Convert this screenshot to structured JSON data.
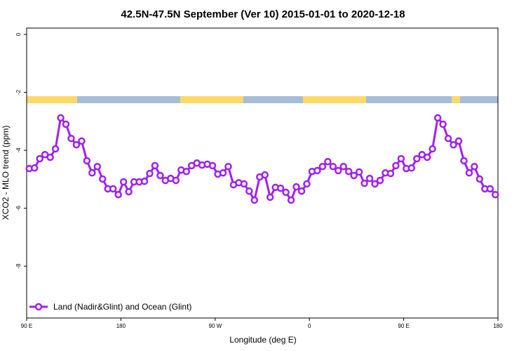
{
  "chart_data": {
    "type": "line",
    "title": "42.5N-47.5N September (Ver 10)   2015-01-01 to 2020-12-18",
    "x_label": "Longitude (deg E)",
    "y_label": "XCO2 - MLO trend (ppm)",
    "xlim": [
      90,
      540
    ],
    "ylim": [
      -9.79,
      0.22
    ],
    "xticks": [
      {
        "value": 90,
        "label": "90 E"
      },
      {
        "value": 180,
        "label": "180"
      },
      {
        "value": 270,
        "label": "90 W"
      },
      {
        "value": 360,
        "label": "0"
      },
      {
        "value": 450,
        "label": "90 E"
      },
      {
        "value": 540,
        "label": "180"
      }
    ],
    "yticks": [
      0,
      -2,
      -4,
      -6,
      -8
    ],
    "legend": "bottom-left",
    "x": [
      92.5,
      97.5,
      102.5,
      107.5,
      112.5,
      117.5,
      122.5,
      127.5,
      132.5,
      137.5,
      142.5,
      147.5,
      152.5,
      157.5,
      162.5,
      167.5,
      172.5,
      177.5,
      182.5,
      187.5,
      192.5,
      197.5,
      202.5,
      207.5,
      212.5,
      217.5,
      222.5,
      227.5,
      232.5,
      237.5,
      242.5,
      247.5,
      252.5,
      257.5,
      262.5,
      267.5,
      272.5,
      277.5,
      282.5,
      287.5,
      292.5,
      297.5,
      302.5,
      307.5,
      312.5,
      317.5,
      322.5,
      327.5,
      332.5,
      337.5,
      342.5,
      347.5,
      352.5,
      357.5,
      362.5,
      367.5,
      372.5,
      377.5,
      382.5,
      387.5,
      392.5,
      397.5,
      402.5,
      407.5,
      412.5,
      417.5,
      422.5,
      427.5,
      432.5,
      437.5,
      442.5,
      447.5,
      452.5,
      457.5,
      462.5,
      467.5,
      472.5,
      477.5,
      482.5,
      487.5,
      492.5,
      497.5,
      502.5,
      507.5,
      512.5,
      517.5,
      522.5,
      527.5,
      532.5,
      537.5
    ],
    "series": [
      {
        "name": "Land (Nadir&Glint) and Ocean (Glint)",
        "color": "#a020f0",
        "values": [
          -4.63,
          -4.61,
          -4.29,
          -4.15,
          -4.24,
          -3.95,
          -2.88,
          -3.1,
          -3.59,
          -3.81,
          -3.68,
          -4.36,
          -4.78,
          -4.56,
          -4.99,
          -5.33,
          -5.33,
          -5.53,
          -5.09,
          -5.43,
          -5.09,
          -5.09,
          -5.07,
          -4.8,
          -4.53,
          -4.87,
          -5.04,
          -4.97,
          -5.04,
          -4.68,
          -4.73,
          -4.53,
          -4.44,
          -4.51,
          -4.48,
          -4.53,
          -4.82,
          -4.78,
          -4.56,
          -5.19,
          -5.12,
          -5.16,
          -5.41,
          -5.72,
          -4.92,
          -4.85,
          -5.62,
          -5.28,
          -5.31,
          -5.45,
          -5.72,
          -5.26,
          -5.41,
          -5.16,
          -4.73,
          -4.7,
          -4.56,
          -4.39,
          -4.56,
          -4.7,
          -4.56,
          -4.73,
          -4.87,
          -4.75,
          -5.14,
          -4.97,
          -5.16,
          -5.04,
          -4.78,
          -4.8,
          -4.53,
          -4.29,
          -4.63,
          -4.61,
          -4.29,
          -4.15,
          -4.24,
          -3.95,
          -2.88,
          -3.1,
          -3.59,
          -3.81,
          -3.68,
          -4.36,
          -4.78,
          -4.56,
          -4.99,
          -5.33,
          -5.33,
          -5.53
        ]
      }
    ]
  }
}
